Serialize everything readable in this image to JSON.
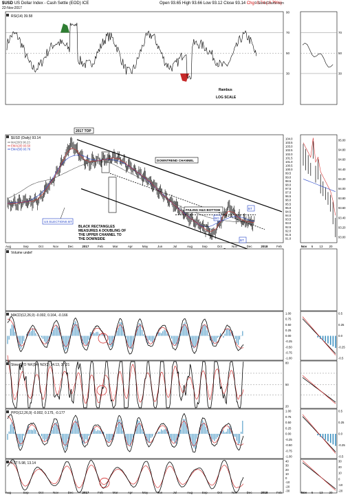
{
  "header": {
    "symbol": "$USD",
    "name": "US Dollar Index - Cash Settle (EOD) ICE",
    "date": "22-Nov-2017",
    "open": "Open 93.65",
    "high": "High 93.66",
    "low": "Low 93.12",
    "close": "Close 93.14",
    "change": "Chg -0.74 (-0.79%)",
    "brand": "© StockCharts.com"
  },
  "chart_data": [
    {
      "type": "line",
      "panel": "rsi",
      "label": "RSI(14) 39.58",
      "ylim": [
        0,
        100
      ],
      "ticks": [
        "90",
        "70",
        "50",
        "30"
      ],
      "annotations": [
        "Rambus",
        "LOG SCALE"
      ],
      "colors": {
        "line": "#000000",
        "overbought": "#2e7d32",
        "oversold": "#c62828"
      }
    },
    {
      "type": "candlestick",
      "panel": "price",
      "label": "$USD (Daily) 93.14",
      "legend": [
        {
          "name": "MA(200) 96.23",
          "color": "#555555"
        },
        {
          "name": "EMA(20) 93.50",
          "color": "#d32f2f"
        },
        {
          "name": "EMA(50) 93.76",
          "color": "#1e3fc8"
        }
      ],
      "ylim": [
        91.0,
        104.0
      ],
      "ticks": [
        "104.0",
        "103.5",
        "103.0",
        "102.5",
        "102.0",
        "101.5",
        "101.0",
        "100.5",
        "100.0",
        "99.5",
        "99.0",
        "98.5",
        "98.0",
        "97.5",
        "97.0",
        "96.5",
        "96.0",
        "95.5",
        "95.0",
        "94.5",
        "94.0",
        "93.5",
        "93.0",
        "92.5",
        "92.0",
        "91.5",
        "91.0"
      ],
      "x_labels": [
        "Aug",
        "Sep",
        "Oct",
        "Nov",
        "Dec",
        "2017",
        "Feb",
        "Mar",
        "Apr",
        "May",
        "Jun",
        "Jul",
        "Aug",
        "Sep",
        "Oct",
        "Nov",
        "Dec",
        "2018",
        "Feb"
      ],
      "key_points": [
        {
          "date": "2016-08",
          "value": 95.5
        },
        {
          "date": "2016-10",
          "value": 96.0
        },
        {
          "date": "2016-11",
          "value": 99.0
        },
        {
          "date": "2016-12",
          "value": 103.3
        },
        {
          "date": "2017-01",
          "value": 101.0
        },
        {
          "date": "2017-03",
          "value": 101.5
        },
        {
          "date": "2017-05",
          "value": 98.5
        },
        {
          "date": "2017-07",
          "value": 94.5
        },
        {
          "date": "2017-09",
          "value": 91.5
        },
        {
          "date": "2017-10",
          "value": 95.0
        },
        {
          "date": "2017-11",
          "value": 93.14
        }
      ],
      "annotations": {
        "top": "2017 TOP",
        "channel": "DOWNTREND CHANNEL",
        "elections": "US ELECTIONS BT",
        "rect_note": "BLACK RECTANGLES MEASURES A DOUBLING OF THE UPPER CHANNEL TO THE DOWNSIDE",
        "hs": "FAILING H&S BOTTOM",
        "nl": "NL",
        "bo": "BO",
        "bt": "BT",
        "s": "S",
        "h": "H"
      }
    },
    {
      "type": "candlestick",
      "panel": "inset",
      "ylim": [
        93.0,
        95.0
      ],
      "ticks": [
        "95.00",
        "94.80",
        "94.60",
        "94.40",
        "94.20",
        "94.00",
        "93.80",
        "93.60",
        "93.40",
        "93.20",
        "93.00"
      ],
      "x_labels": [
        "Nov",
        "6",
        "13",
        "20"
      ]
    },
    {
      "type": "bar",
      "panel": "volume",
      "label": "Volume undef"
    },
    {
      "type": "line",
      "panel": "macd",
      "label": "MACD(12,26,9) -0.002, 0.164, -0.166",
      "ticks": [
        "1.00",
        "0.75",
        "0.50",
        "0.25",
        "0.00",
        "-0.25",
        "-0.50",
        "-0.75",
        "-1.00"
      ],
      "inset_ticks": [
        "0.5",
        "0.25",
        "0.0",
        "-0.25",
        "-0.5"
      ]
    },
    {
      "type": "line",
      "panel": "sto",
      "label": "Slow STO %K(14) %D(3) 24.13, 27.21",
      "ticks": [
        "80",
        "50",
        "20"
      ]
    },
    {
      "type": "line",
      "panel": "ppo",
      "label": "PPO(12,26,9) -0.002, 0.175, -0.177",
      "ticks": [
        "1.00",
        "0.75",
        "0.50",
        "0.25",
        "0.00",
        "-0.25",
        "-0.50",
        "-0.75",
        "-1.00"
      ],
      "inset_ticks": [
        "0.5",
        "0.25",
        "0.0",
        "-0.25",
        "-0.5"
      ]
    },
    {
      "type": "line",
      "panel": "kst",
      "label": "KST 5.98, 13.14",
      "ticks": [
        "40",
        "30",
        "20",
        "10",
        "0",
        "-10",
        "-20",
        "-30"
      ],
      "inset_ticks": [
        "30",
        "20",
        "10",
        "0",
        "-10",
        "-20"
      ],
      "x_labels": [
        "Aug",
        "Sep",
        "Oct",
        "Nov",
        "Dec",
        "2017",
        "Feb",
        "Mar",
        "Apr",
        "May",
        "Jun",
        "Jul",
        "Aug",
        "Sep",
        "Oct",
        "Nov",
        "Dec",
        "2018",
        "Feb"
      ],
      "inset_x_labels": [
        "Nov",
        "6",
        "13",
        "20"
      ]
    }
  ]
}
